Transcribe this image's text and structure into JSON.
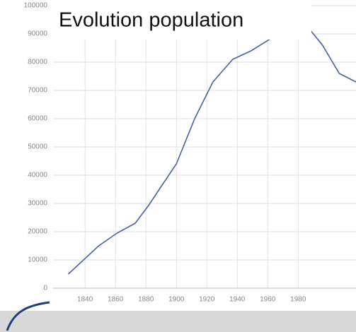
{
  "chart_data": {
    "type": "line",
    "title": "Evolution population",
    "x": [
      1829,
      1849,
      1861,
      1873,
      1882,
      1890,
      1900,
      1912,
      1924,
      1937,
      1949,
      1961,
      1984,
      1996,
      2007,
      2018
    ],
    "series": [
      {
        "name": null,
        "color": "#4a5fa8",
        "values": [
          5000,
          15000,
          19500,
          23000,
          29500,
          36000,
          44000,
          60000,
          73000,
          81000,
          84000,
          88000,
          94000,
          86000,
          76000,
          73000
        ]
      }
    ],
    "xlim": [
      1819,
      2018
    ],
    "ylim": [
      0,
      102000
    ],
    "xticks": [
      1840,
      1860,
      1880,
      1900,
      1920,
      1940,
      1960,
      1980
    ],
    "yticks": [
      0,
      10000,
      20000,
      30000,
      40000,
      50000,
      60000,
      70000,
      80000,
      90000,
      100000
    ],
    "grid": true
  }
}
